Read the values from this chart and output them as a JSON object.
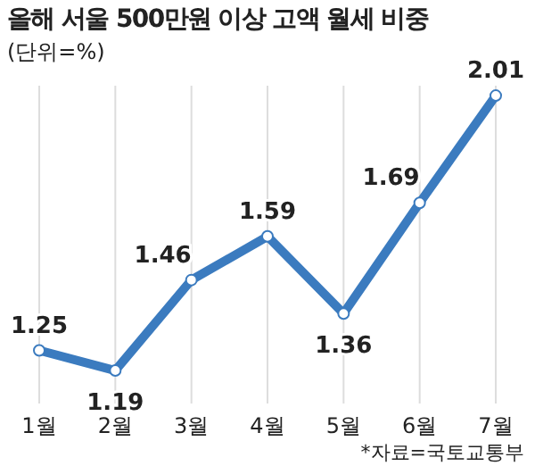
{
  "chart_data": {
    "type": "line",
    "title": "올해 서울 500만원 이상 고액 월세 비중",
    "subtitle": "(단위=%)",
    "annotations": [
      "*자료=국토교통부"
    ],
    "categories": [
      "1월",
      "2월",
      "3월",
      "4월",
      "5월",
      "6월",
      "7월"
    ],
    "series": [
      {
        "color": "#3b7bbf",
        "values": [
          1.25,
          1.19,
          1.46,
          1.59,
          1.36,
          1.69,
          2.01
        ]
      }
    ],
    "data_labels": true,
    "marker": "circle",
    "grid": "x",
    "tick_labels": "x",
    "line_style": "solid"
  }
}
